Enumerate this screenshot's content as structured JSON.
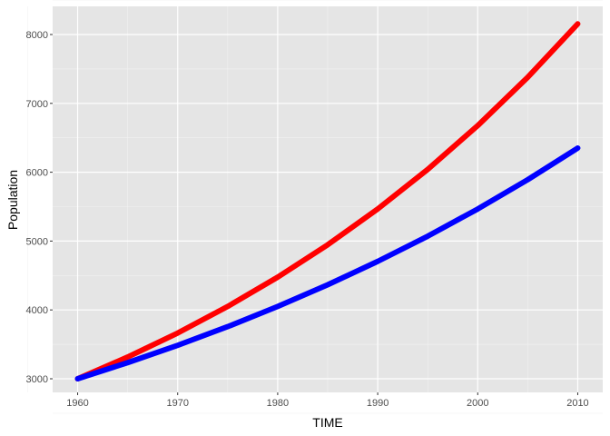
{
  "chart_data": {
    "type": "line",
    "title": "",
    "xlabel": "TIME",
    "ylabel": "Population",
    "xlim": [
      1957.5,
      2012.5
    ],
    "ylim": [
      2802,
      8409
    ],
    "x_ticks": [
      1960,
      1970,
      1980,
      1990,
      2000,
      2010
    ],
    "y_ticks": [
      3000,
      4000,
      5000,
      6000,
      7000,
      8000
    ],
    "grid": true,
    "x": [
      1960,
      1965,
      1970,
      1975,
      1980,
      1985,
      1990,
      1995,
      2000,
      2005,
      2010
    ],
    "series": [
      {
        "color": "#ff0000",
        "values": [
          3000,
          3316,
          3664,
          4050,
          4476,
          4946,
          5466,
          6041,
          6677,
          7379,
          8155
        ]
      },
      {
        "color": "#0000ff",
        "values": [
          3000,
          3234,
          3486,
          3757,
          4050,
          4365,
          4705,
          5071,
          5466,
          5892,
          6351
        ]
      }
    ]
  }
}
